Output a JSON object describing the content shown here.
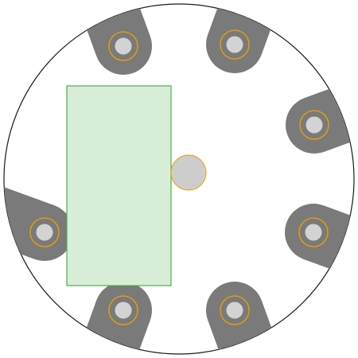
{
  "colors": {
    "background": "#ffffff",
    "board_fill": "#ffffff",
    "board_stroke": "#1a1a1a",
    "tab_fill": "#7a7a7a",
    "hole_fill": "#d3d3d3",
    "ring_stroke": "#f0a000",
    "panel_fill": "#d9eed8",
    "panel_stroke": "#4cad4c",
    "center_fill": "#cdcdcd",
    "center_stroke": "#f0a000"
  },
  "diagram": {
    "mounting_tabs": [
      {
        "name": "tab-top-left-outer"
      },
      {
        "name": "tab-top-right-outer"
      },
      {
        "name": "tab-right-upper"
      },
      {
        "name": "tab-right-lower"
      },
      {
        "name": "tab-bottom-right"
      },
      {
        "name": "tab-bottom-left"
      },
      {
        "name": "tab-left"
      }
    ],
    "panel": {
      "name": "green-panel"
    },
    "center_hole": {
      "name": "center-hole"
    }
  }
}
